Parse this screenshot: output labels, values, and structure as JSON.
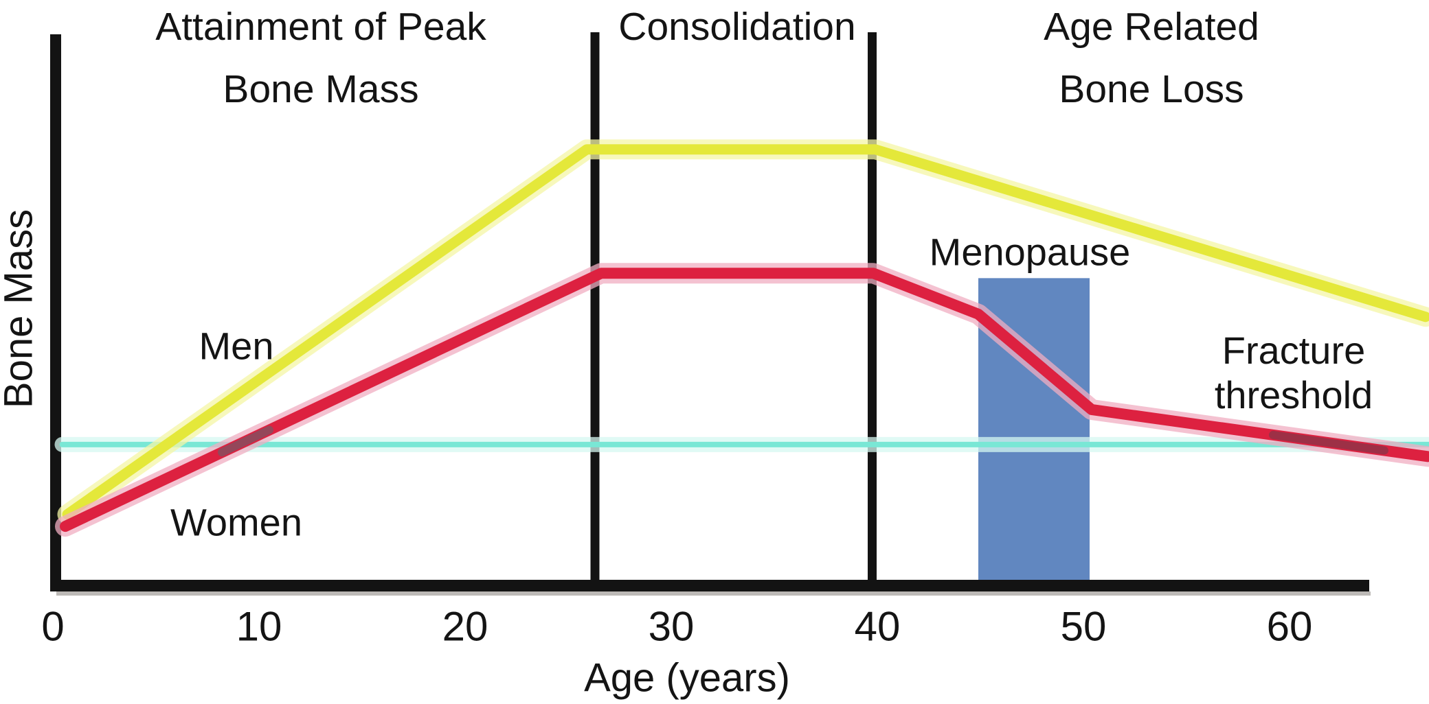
{
  "chart_data": {
    "type": "line",
    "xlabel": "Age (years)",
    "ylabel": "Bone Mass",
    "x_ticks": [
      0,
      10,
      20,
      30,
      40,
      50,
      60
    ],
    "x_range_years": [
      0,
      67
    ],
    "y_axis_numeric_labels": false,
    "grid": false,
    "axis_color": "#131313",
    "phases": [
      {
        "label": "Attainment of Peak\nBone Mass",
        "center_age": 13.0
      },
      {
        "label": "Consolidation",
        "center_age": 33.2
      },
      {
        "label": "Age Related Bone Loss",
        "center_age": 53.3
      }
    ],
    "dividers_age": [
      26.3,
      39.75
    ],
    "series": [
      {
        "name": "Fracture threshold",
        "color": "#79e7d5",
        "halo": "#d6f8f1",
        "width": 8,
        "points": [
          {
            "age": 0.45,
            "value": 24.8
          },
          {
            "age": 66.8,
            "value": 24.8
          }
        ]
      },
      {
        "name": "Men",
        "color": "#e4e83a",
        "halo": "#f4f6a6",
        "width": 15,
        "points": [
          {
            "age": 0.7,
            "value": 12.0
          },
          {
            "age": 25.9,
            "value": 78.9
          },
          {
            "age": 39.9,
            "value": 78.9
          },
          {
            "age": 66.6,
            "value": 48.2
          }
        ]
      },
      {
        "name": "Women",
        "color": "#dd2140",
        "halo": "#f0aec2",
        "width": 16,
        "points": [
          {
            "age": 0.6,
            "value": 9.8
          },
          {
            "age": 26.6,
            "value": 56.2
          },
          {
            "age": 39.8,
            "value": 56.2
          },
          {
            "age": 44.9,
            "value": 48.7
          },
          {
            "age": 50.4,
            "value": 31.2
          },
          {
            "age": 66.7,
            "value": 22.6
          }
        ]
      }
    ],
    "menopause_region": {
      "label": "Menopause",
      "age_start": 44.9,
      "age_end": 50.3,
      "value_top": 55.3,
      "value_bottom": 0,
      "color": "#6187c0"
    },
    "blend_marks": [
      {
        "on": "Women",
        "age_start": 8.2,
        "age_end": 10.5,
        "color": "rgba(100,97,108,0.6)"
      },
      {
        "on": "Women",
        "age_start": 59.2,
        "age_end": 64.6,
        "color": "rgba(104,62,74,0.55)"
      }
    ],
    "labels": {
      "men": {
        "text": "Men",
        "age": 8.9,
        "value": 42.8
      },
      "women": {
        "text": "Women",
        "age": 8.9,
        "value": 10.4
      },
      "menopause": {
        "text": "Menopause",
        "age": 47.4,
        "value": 60.0
      },
      "fracture_threshold": {
        "text": "Fracture\nthreshold",
        "age": 60.2,
        "value": 37.8
      }
    }
  }
}
